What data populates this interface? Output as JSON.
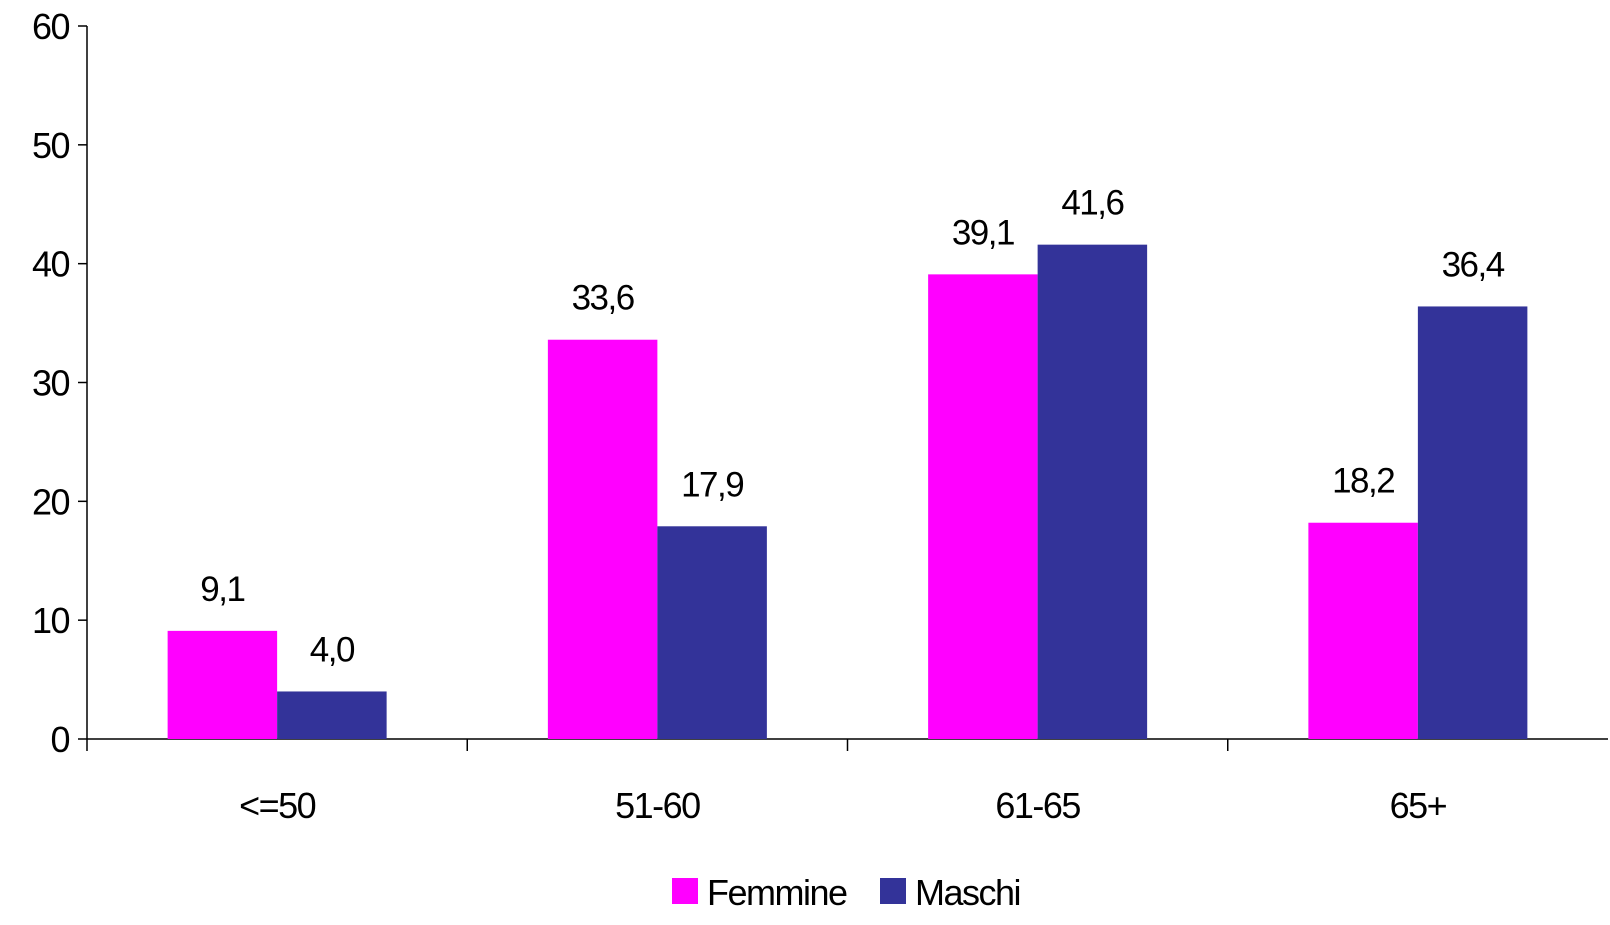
{
  "chart_data": {
    "type": "bar",
    "categories": [
      "<=50",
      "51-60",
      "61-65",
      "65+"
    ],
    "series": [
      {
        "name": "Femmine",
        "color": "#FF00FF",
        "values": [
          9.1,
          33.6,
          39.1,
          18.2
        ],
        "labels": [
          "9,1",
          "33,6",
          "39,1",
          "18,2"
        ]
      },
      {
        "name": "Maschi",
        "color": "#333399",
        "values": [
          4.0,
          17.9,
          41.6,
          36.4
        ],
        "labels": [
          "4,0",
          "17,9",
          "41,6",
          "36,4"
        ]
      }
    ],
    "ylim": [
      0,
      60
    ],
    "yticks": [
      0,
      10,
      20,
      30,
      40,
      50,
      60
    ],
    "grid": false,
    "legend_position": "bottom-center"
  }
}
